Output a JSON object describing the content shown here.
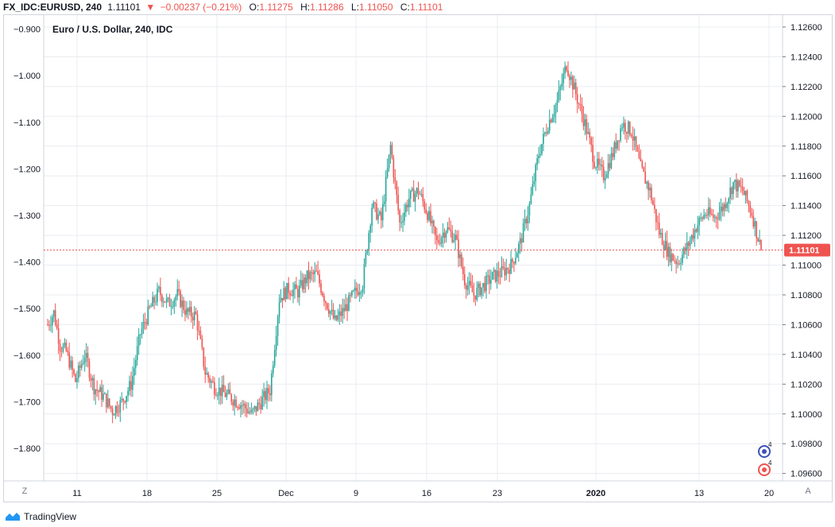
{
  "header": {
    "symbol": "FX_IDC:EURUSD, 240",
    "last": "1.11101",
    "arrow": "▼",
    "change": "−0.00237 (−0.21%)",
    "o_label": "O:",
    "o_value": "1.11275",
    "h_label": "H:",
    "h_value": "1.11286",
    "l_label": "L:",
    "l_value": "1.11050",
    "c_label": "C:",
    "c_value": "1.11101"
  },
  "legend_title": "Euro / U.S. Dollar, 240, IDC",
  "footer": {
    "brand": "TradingView",
    "left_corner": "Z",
    "right_corner": "A"
  },
  "colors": {
    "up": "#26a69a",
    "down": "#ef5350",
    "grid": "#e9ecf1",
    "price_line": "#ef5350"
  },
  "chart_data": {
    "type": "candlestick",
    "title": "Euro / U.S. Dollar, 240, IDC",
    "last_price": 1.11101,
    "last_price_label": "1.11101",
    "right_axis": {
      "ticks": [
        "1.12600",
        "1.12400",
        "1.12200",
        "1.12000",
        "1.11800",
        "1.11600",
        "1.11400",
        "1.11200",
        "1.11000",
        "1.10800",
        "1.10600",
        "1.10400",
        "1.10200",
        "1.10000",
        "1.09800",
        "1.09600"
      ],
      "range": [
        1.0955,
        1.1268
      ]
    },
    "left_axis": {
      "ticks": [
        "−0.900",
        "−1.000",
        "−1.100",
        "−1.200",
        "−1.300",
        "−1.400",
        "−1.500",
        "−1.600",
        "−1.700",
        "−1.800"
      ],
      "range": [
        -1.87,
        -0.87
      ]
    },
    "x_labels": [
      "11",
      "18",
      "25",
      "Dec",
      "9",
      "16",
      "23",
      "2020",
      "13",
      "20"
    ],
    "price_path": [
      [
        0,
        1.106
      ],
      [
        4,
        1.1068
      ],
      [
        8,
        1.1046
      ],
      [
        12,
        1.1042
      ],
      [
        18,
        1.1022
      ],
      [
        24,
        1.104
      ],
      [
        30,
        1.1018
      ],
      [
        36,
        1.1012
      ],
      [
        42,
        1.1002
      ],
      [
        48,
        1.1008
      ],
      [
        54,
        1.102
      ],
      [
        60,
        1.1054
      ],
      [
        66,
        1.107
      ],
      [
        72,
        1.1082
      ],
      [
        78,
        1.1074
      ],
      [
        84,
        1.108
      ],
      [
        90,
        1.1068
      ],
      [
        96,
        1.1066
      ],
      [
        102,
        1.1028
      ],
      [
        108,
        1.1018
      ],
      [
        114,
        1.1014
      ],
      [
        120,
        1.101
      ],
      [
        126,
        1.1006
      ],
      [
        132,
        1.1
      ],
      [
        138,
        1.1008
      ],
      [
        144,
        1.1016
      ],
      [
        150,
        1.1078
      ],
      [
        156,
        1.1084
      ],
      [
        162,
        1.1082
      ],
      [
        168,
        1.1092
      ],
      [
        174,
        1.1094
      ],
      [
        180,
        1.1076
      ],
      [
        186,
        1.1062
      ],
      [
        192,
        1.107
      ],
      [
        198,
        1.108
      ],
      [
        204,
        1.1088
      ],
      [
        210,
        1.114
      ],
      [
        216,
        1.113
      ],
      [
        222,
        1.118
      ],
      [
        228,
        1.1128
      ],
      [
        234,
        1.1145
      ],
      [
        240,
        1.115
      ],
      [
        246,
        1.1135
      ],
      [
        252,
        1.1115
      ],
      [
        258,
        1.1125
      ],
      [
        264,
        1.1118
      ],
      [
        270,
        1.109
      ],
      [
        276,
        1.108
      ],
      [
        282,
        1.1086
      ],
      [
        288,
        1.1092
      ],
      [
        294,
        1.1095
      ],
      [
        300,
        1.11
      ],
      [
        306,
        1.1115
      ],
      [
        312,
        1.114
      ],
      [
        318,
        1.1175
      ],
      [
        324,
        1.1195
      ],
      [
        330,
        1.121
      ],
      [
        336,
        1.1235
      ],
      [
        342,
        1.1215
      ],
      [
        348,
        1.1195
      ],
      [
        354,
        1.117
      ],
      [
        360,
        1.116
      ],
      [
        366,
        1.1175
      ],
      [
        372,
        1.1195
      ],
      [
        378,
        1.119
      ],
      [
        384,
        1.1165
      ],
      [
        390,
        1.115
      ],
      [
        396,
        1.1122
      ],
      [
        402,
        1.1108
      ],
      [
        408,
        1.1102
      ],
      [
        414,
        1.1112
      ],
      [
        420,
        1.1126
      ],
      [
        426,
        1.1135
      ],
      [
        432,
        1.1132
      ],
      [
        438,
        1.114
      ],
      [
        444,
        1.1155
      ],
      [
        450,
        1.115
      ],
      [
        456,
        1.1135
      ],
      [
        462,
        1.111
      ]
    ]
  }
}
